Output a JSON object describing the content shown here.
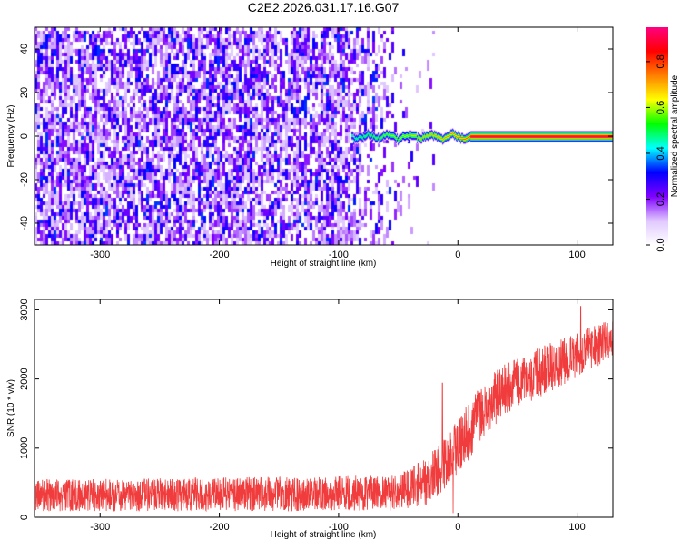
{
  "figure": {
    "title": "C2E2.2026.031.17.16.G07"
  },
  "chart_data": [
    {
      "type": "heatmap",
      "name": "spectrogram",
      "xlabel": "Height of straight line (km)",
      "ylabel": "Frequency (Hz)",
      "xlim": [
        -355,
        130
      ],
      "ylim": [
        -50,
        50
      ],
      "xticks": [
        -300,
        -200,
        -100,
        0,
        100
      ],
      "yticks": [
        -40,
        -20,
        0,
        20,
        40
      ],
      "grid": false,
      "colorbar": {
        "label": "Normalized spectral amplitude",
        "range": [
          0,
          0.95
        ],
        "ticks": [
          0.0,
          0.2,
          0.4,
          0.6,
          0.8
        ],
        "colors": [
          "#ffffff",
          "#e0c8ff",
          "#8000ff",
          "#0000ff",
          "#00ffff",
          "#00ff00",
          "#ffff00",
          "#ff8000",
          "#ff0000",
          "#ff0080"
        ]
      },
      "features": {
        "noise_region_x": [
          -355,
          -20
        ],
        "noise_dense_until_x": -95,
        "signal_band": {
          "frequency_hz": 0,
          "noisy_start_x": -90,
          "stable_start_x": 10,
          "end_x": 130
        }
      }
    },
    {
      "type": "line",
      "name": "snr",
      "xlabel": "Height of straight line (km)",
      "ylabel": "SNR (10 * v/v)",
      "xlim": [
        -355,
        130
      ],
      "ylim": [
        0,
        3150
      ],
      "xticks": [
        -300,
        -200,
        -100,
        0,
        100
      ],
      "yticks": [
        0,
        1000,
        2000,
        3000
      ],
      "grid": false,
      "series": [
        {
          "color": "#f03c3c",
          "trend": {
            "x": [
              -355,
              -300,
              -200,
              -100,
              -50,
              -25,
              0,
              25,
              50,
              75,
              100,
              130
            ],
            "y": [
              320,
              320,
              330,
              340,
              360,
              520,
              1000,
              1650,
              1950,
              2150,
              2350,
              2600
            ]
          },
          "noise_amplitude": {
            "x": [
              -355,
              -50,
              0,
              130
            ],
            "y": [
              230,
              260,
              430,
              300
            ]
          },
          "spikes": [
            {
              "x": -13,
              "y": 1940
            },
            {
              "x": -4,
              "y": 60
            },
            {
              "x": 103,
              "y": 3050
            }
          ]
        }
      ]
    }
  ]
}
